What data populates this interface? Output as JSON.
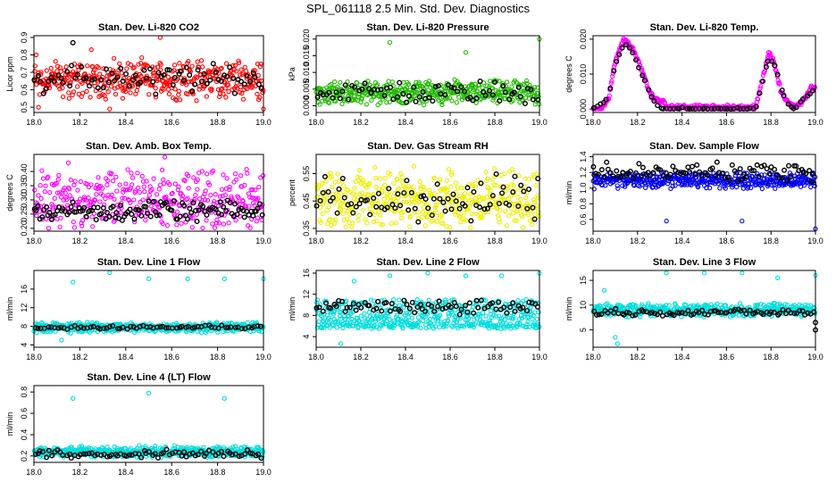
{
  "page_title": "SPL_061118  2.5 Min. Std. Dev. Diagnostics",
  "chart_data": [
    {
      "type": "scatter",
      "title": "Stan. Dev. Li-820 CO2",
      "ylabel": "Licor ppm",
      "xlim": [
        18.0,
        19.0
      ],
      "ylim": [
        0.47,
        0.91
      ],
      "xticks": [
        18.0,
        18.2,
        18.4,
        18.6,
        18.8,
        19.0
      ],
      "yticks": [
        0.5,
        0.6,
        0.7,
        0.8,
        0.9
      ],
      "ytick_labels": [
        "0.5",
        "0.6",
        "0.7",
        "0.8",
        "0.9"
      ],
      "series": [
        {
          "name": "main",
          "color": "#ff0000",
          "base": 0.66,
          "spread": 0.13,
          "count": 420,
          "range": [
            0.5,
            0.82
          ],
          "outliers": [
            [
              18.55,
              0.9
            ],
            [
              18.25,
              0.83
            ],
            [
              18.01,
              0.8
            ],
            [
              18.33,
              0.49
            ],
            [
              19.0,
              0.49
            ],
            [
              18.02,
              0.5
            ]
          ]
        },
        {
          "name": "reference",
          "color": "#000000",
          "base": 0.66,
          "spread": 0.1,
          "count": 80,
          "range": [
            0.55,
            0.8
          ],
          "outliers": [
            [
              18.17,
              0.87
            ]
          ]
        }
      ]
    },
    {
      "type": "scatter",
      "title": "Stan. Dev. Li-820 Pressure",
      "ylabel": "kPa",
      "xlim": [
        18.0,
        19.0
      ],
      "ylim": [
        -0.002,
        0.021
      ],
      "xticks": [
        18.0,
        18.2,
        18.4,
        18.6,
        18.8,
        19.0
      ],
      "yticks": [
        0.0,
        0.005,
        0.01,
        0.015,
        0.02
      ],
      "ytick_labels": [
        "0.000",
        "0.005",
        "0.010",
        "0.015",
        "0.020"
      ],
      "series": [
        {
          "name": "main",
          "color": "#22bb00",
          "base": 0.004,
          "spread": 0.004,
          "count": 450,
          "range": [
            0,
            0.01
          ],
          "outliers": [
            [
              18.33,
              0.019
            ],
            [
              18.67,
              0.016
            ],
            [
              19.0,
              0.02
            ]
          ]
        },
        {
          "name": "reference",
          "color": "#000000",
          "base": 0.004,
          "spread": 0.004,
          "count": 70,
          "range": [
            0,
            0.01
          ],
          "outliers": []
        }
      ]
    },
    {
      "type": "scatter",
      "title": "Stan. Dev. Li-820 Temp.",
      "ylabel": "degrees C",
      "xlim": [
        18.0,
        19.0
      ],
      "ylim": [
        -0.001,
        0.021
      ],
      "xticks": [
        18.0,
        18.2,
        18.4,
        18.6,
        18.8,
        19.0
      ],
      "yticks": [
        0.0,
        0.01,
        0.02
      ],
      "ytick_labels": [
        "0.000",
        "0.010",
        "0.020"
      ],
      "series": [
        {
          "name": "main",
          "color": "#ff00ff",
          "base": 0,
          "spread": 0.0008,
          "count": 360,
          "range": [
            0,
            0.021
          ],
          "curve": [
            [
              18.0,
              0
            ],
            [
              18.04,
              0
            ],
            [
              18.07,
              0.003
            ],
            [
              18.1,
              0.014
            ],
            [
              18.14,
              0.02
            ],
            [
              18.18,
              0.017
            ],
            [
              18.22,
              0.011
            ],
            [
              18.26,
              0.004
            ],
            [
              18.3,
              0.002
            ],
            [
              18.32,
              0.002
            ],
            [
              18.33,
              0.0005
            ],
            [
              18.73,
              0.0005
            ],
            [
              18.76,
              0.008
            ],
            [
              18.79,
              0.016
            ],
            [
              18.81,
              0.014
            ],
            [
              18.85,
              0.004
            ],
            [
              18.9,
              0.0005
            ],
            [
              18.94,
              0.002
            ],
            [
              18.98,
              0.006
            ],
            [
              19.0,
              0.006
            ]
          ],
          "outliers": []
        },
        {
          "name": "reference",
          "color": "#000000",
          "base": 0,
          "spread": 0.0005,
          "count": 70,
          "range": [
            0,
            0.021
          ],
          "curve": [
            [
              18.0,
              0
            ],
            [
              18.07,
              0.003
            ],
            [
              18.1,
              0.013
            ],
            [
              18.14,
              0.019
            ],
            [
              18.18,
              0.016
            ],
            [
              18.22,
              0.01
            ],
            [
              18.26,
              0.004
            ],
            [
              18.3,
              0
            ],
            [
              18.73,
              0
            ],
            [
              18.76,
              0.007
            ],
            [
              18.79,
              0.015
            ],
            [
              18.82,
              0.012
            ],
            [
              18.86,
              0.003
            ],
            [
              18.9,
              0
            ],
            [
              19.0,
              0.006
            ]
          ],
          "outliers": []
        }
      ]
    },
    {
      "type": "scatter",
      "title": "Stan. Dev. Amb. Box Temp.",
      "ylabel": "degrees C",
      "xlim": [
        18.0,
        19.0
      ],
      "ylim": [
        0.19,
        0.46
      ],
      "xticks": [
        18.0,
        18.2,
        18.4,
        18.6,
        18.8,
        19.0
      ],
      "yticks": [
        0.2,
        0.25,
        0.3,
        0.35,
        0.4
      ],
      "ytick_labels": [
        "0.20",
        "0.25",
        "0.30",
        "0.35",
        "0.40"
      ],
      "series": [
        {
          "name": "main",
          "color": "#ff00ff",
          "base": 0.3,
          "spread": 0.12,
          "count": 380,
          "range": [
            0.2,
            0.45
          ],
          "outliers": [
            [
              18.57,
              0.45
            ],
            [
              18.15,
              0.43
            ]
          ]
        },
        {
          "name": "reference",
          "color": "#000000",
          "base": 0.26,
          "spread": 0.04,
          "count": 120,
          "range": [
            0.22,
            0.32
          ],
          "outliers": []
        }
      ]
    },
    {
      "type": "scatter",
      "title": "Stan. Dev. Gas Stream RH",
      "ylabel": "percent",
      "xlim": [
        18.0,
        19.0
      ],
      "ylim": [
        0.34,
        0.62
      ],
      "xticks": [
        18.0,
        18.2,
        18.4,
        18.6,
        18.8,
        19.0
      ],
      "yticks": [
        0.35,
        0.45,
        0.55
      ],
      "ytick_labels": [
        "0.35",
        "0.45",
        "0.55"
      ],
      "series": [
        {
          "name": "main",
          "color": "#eeee00",
          "base": 0.46,
          "spread": 0.12,
          "count": 450,
          "range": [
            0.35,
            0.6
          ],
          "outliers": []
        },
        {
          "name": "reference",
          "color": "#000000",
          "base": 0.45,
          "spread": 0.1,
          "count": 80,
          "range": [
            0.37,
            0.55
          ],
          "outliers": []
        }
      ]
    },
    {
      "type": "scatter",
      "title": "Stan. Dev. Sample Flow",
      "ylabel": "ml/min",
      "xlim": [
        18.0,
        19.0
      ],
      "ylim": [
        0.45,
        1.43
      ],
      "xticks": [
        18.0,
        18.2,
        18.4,
        18.6,
        18.8,
        19.0
      ],
      "yticks": [
        0.6,
        0.8,
        1.0,
        1.2,
        1.4
      ],
      "ytick_labels": [
        "0.6",
        "0.8",
        "1.0",
        "1.2",
        "1.4"
      ],
      "series": [
        {
          "name": "main",
          "color": "#0000ee",
          "base": 1.1,
          "spread": 0.12,
          "count": 450,
          "range": [
            0.85,
            1.4
          ],
          "outliers": [
            [
              18.33,
              0.58
            ],
            [
              18.67,
              0.58
            ],
            [
              19.0,
              0.48
            ]
          ]
        },
        {
          "name": "reference",
          "color": "#000000",
          "base": 1.2,
          "spread": 0.15,
          "count": 90,
          "range": [
            1.0,
            1.4
          ],
          "outliers": []
        }
      ]
    },
    {
      "type": "scatter",
      "title": "Stan. Dev. Line 1 Flow",
      "ylabel": "ml/min",
      "xlim": [
        18.0,
        19.0
      ],
      "ylim": [
        3.5,
        20
      ],
      "xticks": [
        18.0,
        18.2,
        18.4,
        18.6,
        18.8,
        19.0
      ],
      "yticks": [
        4,
        8,
        12,
        16
      ],
      "ytick_labels": [
        "4",
        "8",
        "12",
        "16"
      ],
      "series": [
        {
          "name": "main",
          "color": "#00dddd",
          "base": 7.8,
          "spread": 1.2,
          "count": 500,
          "range": [
            6,
            9.5
          ],
          "outliers": [
            [
              18.17,
              17.5
            ],
            [
              18.33,
              19.5
            ],
            [
              18.5,
              18.2
            ],
            [
              18.67,
              18.2
            ],
            [
              18.83,
              18.2
            ],
            [
              19.0,
              18.2
            ],
            [
              18.12,
              5
            ],
            [
              18.16,
              6.5
            ]
          ]
        },
        {
          "name": "reference",
          "color": "#000000",
          "base": 7.8,
          "spread": 0.5,
          "count": 70,
          "range": [
            7,
            9
          ],
          "outliers": []
        }
      ]
    },
    {
      "type": "scatter",
      "title": "Stan. Dev. Line 2 Flow",
      "ylabel": "ml/min",
      "xlim": [
        18.0,
        19.0
      ],
      "ylim": [
        2,
        16.5
      ],
      "xticks": [
        18.0,
        18.2,
        18.4,
        18.6,
        18.8,
        19.0
      ],
      "yticks": [
        4,
        8,
        12,
        16
      ],
      "ytick_labels": [
        "4",
        "8",
        "12",
        "16"
      ],
      "series": [
        {
          "name": "main",
          "color": "#00dddd",
          "base": 7.8,
          "spread": 5,
          "count": 520,
          "range": [
            5.5,
            11
          ],
          "outliers": [
            [
              18.17,
              14.5
            ],
            [
              18.33,
              15.5
            ],
            [
              18.5,
              16
            ],
            [
              18.67,
              15.5
            ],
            [
              18.83,
              15.5
            ],
            [
              19.0,
              16
            ],
            [
              18.11,
              2.7
            ]
          ]
        },
        {
          "name": "reference",
          "color": "#000000",
          "base": 9.6,
          "spread": 1.5,
          "count": 80,
          "range": [
            6,
            11
          ],
          "outliers": []
        }
      ]
    },
    {
      "type": "scatter",
      "title": "Stan. Dev. Line 3 Flow",
      "ylabel": "ml/min",
      "xlim": [
        18.0,
        19.0
      ],
      "ylim": [
        1.5,
        17
      ],
      "xticks": [
        18.0,
        18.2,
        18.4,
        18.6,
        18.8,
        19.0
      ],
      "yticks": [
        5,
        10,
        15
      ],
      "ytick_labels": [
        "5",
        "10",
        "15"
      ],
      "series": [
        {
          "name": "main",
          "color": "#00dddd",
          "base": 9,
          "spread": 1.5,
          "count": 500,
          "range": [
            7,
            11
          ],
          "outliers": [
            [
              18.05,
              13
            ],
            [
              18.33,
              16.5
            ],
            [
              18.5,
              16.5
            ],
            [
              18.67,
              16.5
            ],
            [
              18.83,
              15.5
            ],
            [
              19.0,
              16
            ],
            [
              18.1,
              3.5
            ],
            [
              18.11,
              2.2
            ]
          ]
        },
        {
          "name": "reference",
          "color": "#000000",
          "base": 8.5,
          "spread": 0.8,
          "count": 80,
          "range": [
            5,
            10
          ],
          "outliers": [
            [
              19.0,
              5
            ],
            [
              19.0,
              6.5
            ]
          ]
        }
      ]
    },
    {
      "type": "scatter",
      "title": "Stan. Dev. Line 4 (LT) Flow",
      "ylabel": "ml/min",
      "xlim": [
        18.0,
        19.0
      ],
      "ylim": [
        0.14,
        0.86
      ],
      "xticks": [
        18.0,
        18.2,
        18.4,
        18.6,
        18.8,
        19.0
      ],
      "yticks": [
        0.2,
        0.4,
        0.6,
        0.8
      ],
      "ytick_labels": [
        "0.2",
        "0.4",
        "0.6",
        "0.8"
      ],
      "series": [
        {
          "name": "main",
          "color": "#00dddd",
          "base": 0.24,
          "spread": 0.06,
          "count": 520,
          "range": [
            0.18,
            0.32
          ],
          "outliers": [
            [
              18.17,
              0.74
            ],
            [
              18.5,
              0.79
            ],
            [
              18.83,
              0.74
            ]
          ]
        },
        {
          "name": "reference",
          "color": "#000000",
          "base": 0.22,
          "spread": 0.05,
          "count": 80,
          "range": [
            0.17,
            0.3
          ],
          "outliers": []
        }
      ]
    }
  ]
}
